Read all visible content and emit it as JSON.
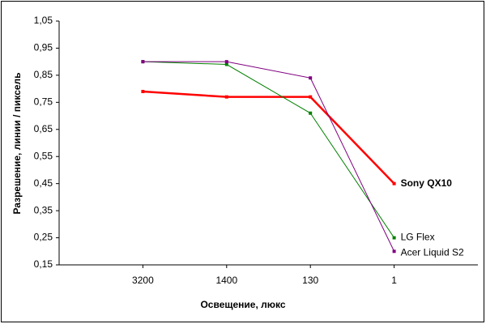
{
  "chart_data": {
    "type": "line",
    "x_label": "Освещение, люкс",
    "y_label": "Разрешение, линии / пиксель",
    "categories": [
      "3200",
      "1400",
      "130",
      "1"
    ],
    "series": [
      {
        "name": "Sony QX10",
        "color": "#ff0000",
        "values": [
          0.79,
          0.77,
          0.77,
          0.45
        ]
      },
      {
        "name": "LG Flex",
        "color": "#008000",
        "values": [
          0.9,
          0.89,
          0.71,
          0.25
        ]
      },
      {
        "name": "Acer Liquid S2",
        "color": "#800080",
        "values": [
          0.9,
          0.9,
          0.84,
          0.2
        ]
      }
    ],
    "ylim": [
      0.15,
      1.05
    ],
    "yticks": [
      {
        "value": 0.15,
        "label": "0,15"
      },
      {
        "value": 0.25,
        "label": "0,25"
      },
      {
        "value": 0.35,
        "label": "0,35"
      },
      {
        "value": 0.45,
        "label": "0,45"
      },
      {
        "value": 0.55,
        "label": "0,55"
      },
      {
        "value": 0.65,
        "label": "0,65"
      },
      {
        "value": 0.75,
        "label": "0,75"
      },
      {
        "value": 0.85,
        "label": "0,85"
      },
      {
        "value": 0.95,
        "label": "0,95"
      },
      {
        "value": 1.05,
        "label": "1,05"
      }
    ],
    "grid": false
  }
}
